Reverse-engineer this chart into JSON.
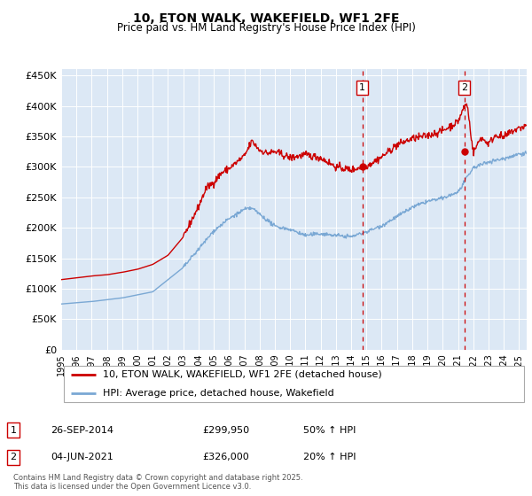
{
  "title": "10, ETON WALK, WAKEFIELD, WF1 2FE",
  "subtitle": "Price paid vs. HM Land Registry's House Price Index (HPI)",
  "legend_entry1": "10, ETON WALK, WAKEFIELD, WF1 2FE (detached house)",
  "legend_entry2": "HPI: Average price, detached house, Wakefield",
  "annotation1_label": "1",
  "annotation1_date": "26-SEP-2014",
  "annotation1_price": "£299,950",
  "annotation1_hpi": "50% ↑ HPI",
  "annotation2_label": "2",
  "annotation2_date": "04-JUN-2021",
  "annotation2_price": "£326,000",
  "annotation2_hpi": "20% ↑ HPI",
  "footer": "Contains HM Land Registry data © Crown copyright and database right 2025.\nThis data is licensed under the Open Government Licence v3.0.",
  "red_color": "#cc0000",
  "blue_color": "#7aa8d4",
  "background_color": "#dce8f5",
  "ylim": [
    0,
    460000
  ],
  "yticks": [
    0,
    50000,
    100000,
    150000,
    200000,
    250000,
    300000,
    350000,
    400000,
    450000
  ],
  "sale1_year": 2014.73,
  "sale1_price": 299950,
  "sale2_year": 2021.42,
  "sale2_price": 326000
}
